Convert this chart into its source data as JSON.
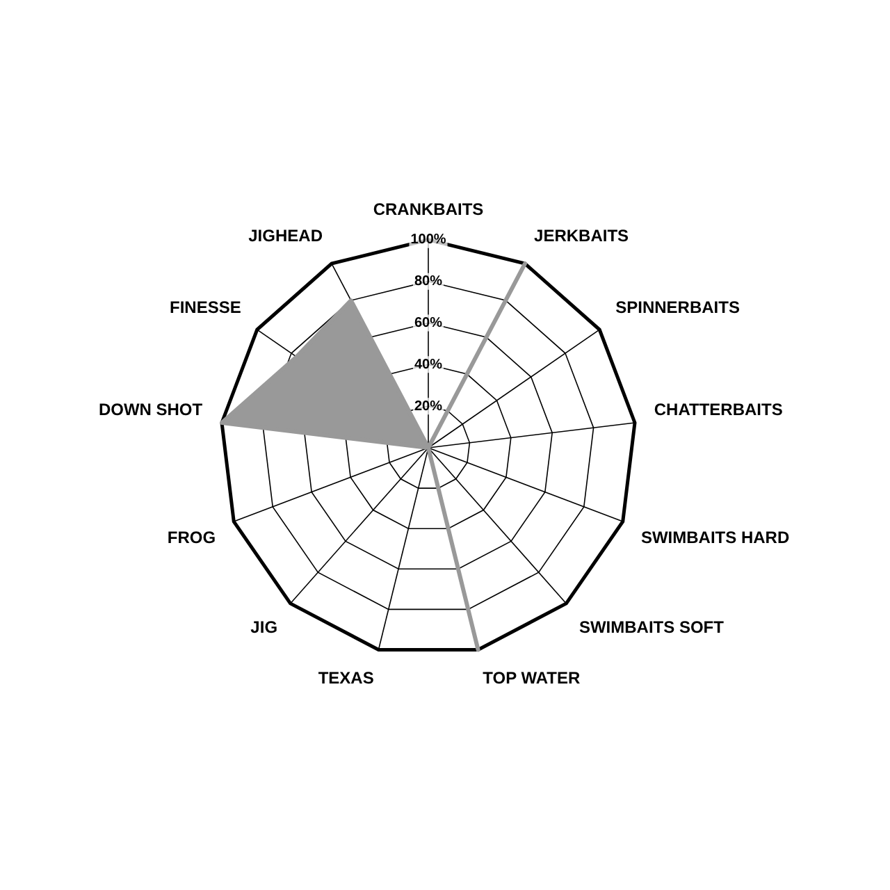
{
  "chart_data": {
    "type": "radar",
    "categories": [
      "CRANKBAITS",
      "JERKBAITS",
      "SPINNERBAITS",
      "CHATTERBAITS",
      "SWIMBAITS HARD",
      "SWIMBAITS SOFT",
      "TOP WATER",
      "TEXAS",
      "JIG",
      "FROG",
      "DOWN SHOT",
      "FINESSE",
      "JIGHEAD"
    ],
    "series": [
      {
        "color": "#999999",
        "values": [
          0,
          100,
          0,
          0,
          0,
          0,
          100,
          0,
          0,
          0,
          100,
          77,
          80
        ]
      }
    ],
    "ylim": [
      0,
      100
    ],
    "yticks": [
      {
        "value": 20,
        "label": "20%"
      },
      {
        "value": 40,
        "label": "40%"
      },
      {
        "value": 60,
        "label": "60%"
      },
      {
        "value": 80,
        "label": "80%"
      },
      {
        "value": 100,
        "label": "100%"
      }
    ],
    "grid": true,
    "legend": false
  }
}
